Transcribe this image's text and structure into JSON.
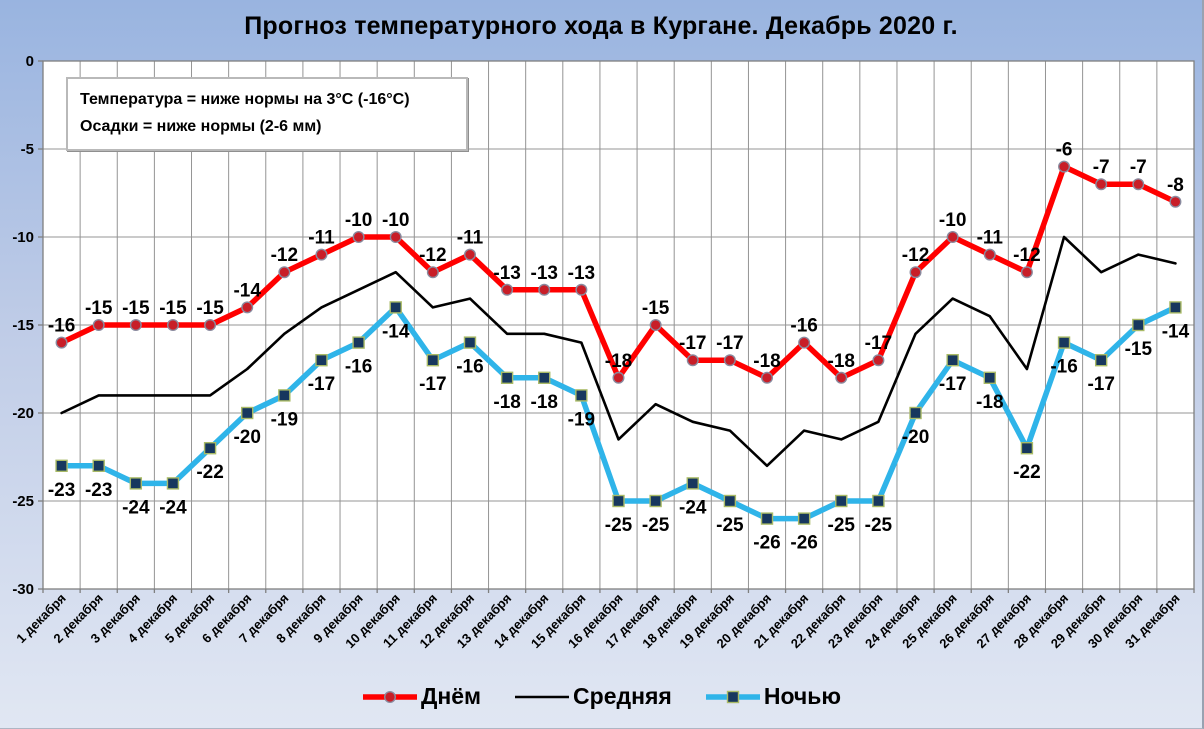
{
  "annotation": {
    "line1": "Температура = ниже нормы на 3°С (-16°С)",
    "line2": "Осадки = ниже нормы (2-6 мм)"
  },
  "colors": {
    "background_top": "#99B4E0",
    "background_bottom": "#E1E7F3",
    "plot_background": "#FFFFFF",
    "gridline": "#949494",
    "axis": "#7F7F7F",
    "data_label": "#000000"
  },
  "chart_data": {
    "type": "line",
    "title": "Прогноз температурного хода в Кургане. Декабрь 2020 г.",
    "categories": [
      "1 декабря",
      "2 декабря",
      "3 декабря",
      "4 декабря",
      "5 декабря",
      "6 декабря",
      "7 декабря",
      "8 декабря",
      "9 декабря",
      "10 декабря",
      "11 декабря",
      "12 декабря",
      "13 декабря",
      "14 декабря",
      "15 декабря",
      "16 декабря",
      "17 декабря",
      "18 декабря",
      "19 декабря",
      "20 декабря",
      "21 декабря",
      "22 декабря",
      "23 декабря",
      "24 декабря",
      "25 декабря",
      "26 декабря",
      "27 декабря",
      "28 декабря",
      "29 декабря",
      "30 декабря",
      "31 декабря"
    ],
    "series": [
      {
        "name": "Днём",
        "key": "day",
        "color": "#FF0000",
        "line_width": 5.5,
        "marker": "circle",
        "marker_fill": "#C81E28",
        "marker_stroke": "#8A8A9E",
        "show_labels": true,
        "label_position": "above",
        "values": [
          -16,
          -15,
          -15,
          -15,
          -15,
          -14,
          -12,
          -11,
          -10,
          -10,
          -12,
          -11,
          -13,
          -13,
          -13,
          -18,
          -15,
          -17,
          -17,
          -18,
          -16,
          -18,
          -17,
          -12,
          -10,
          -11,
          -12,
          -6,
          -7,
          -7,
          -8
        ]
      },
      {
        "name": "Средняя",
        "key": "average",
        "color": "#000000",
        "line_width": 2.6,
        "marker": "none",
        "marker_fill": "#000000",
        "marker_stroke": "#000000",
        "show_labels": false,
        "label_position": "above",
        "values": [
          -20,
          -19,
          -19,
          -19,
          -19,
          -17.5,
          -15.5,
          -14,
          -13,
          -12,
          -14,
          -13.5,
          -15.5,
          -15.5,
          -16,
          -21.5,
          -19.5,
          -20.5,
          -21,
          -23,
          -21,
          -21.5,
          -20.5,
          -15.5,
          -13.5,
          -14.5,
          -17.5,
          -10,
          -12,
          -11,
          -11.5
        ]
      },
      {
        "name": "Ночью",
        "key": "night",
        "color": "#2FB4E9",
        "line_width": 5.5,
        "marker": "square",
        "marker_fill": "#17375E",
        "marker_stroke": "#A9BA66",
        "show_labels": true,
        "label_position": "below",
        "values": [
          -23,
          -23,
          -24,
          -24,
          -22,
          -20,
          -19,
          -17,
          -16,
          -14,
          -17,
          -16,
          -18,
          -18,
          -19,
          -25,
          -25,
          -24,
          -25,
          -26,
          -26,
          -25,
          -25,
          -20,
          -17,
          -18,
          -22,
          -16,
          -17,
          -15,
          -14
        ]
      }
    ],
    "ylim": [
      -30,
      0
    ],
    "yticks": [
      "0",
      "-5",
      "-10",
      "-15",
      "-20",
      "-25",
      "-30"
    ],
    "grid": true,
    "legend_position": "bottom"
  }
}
